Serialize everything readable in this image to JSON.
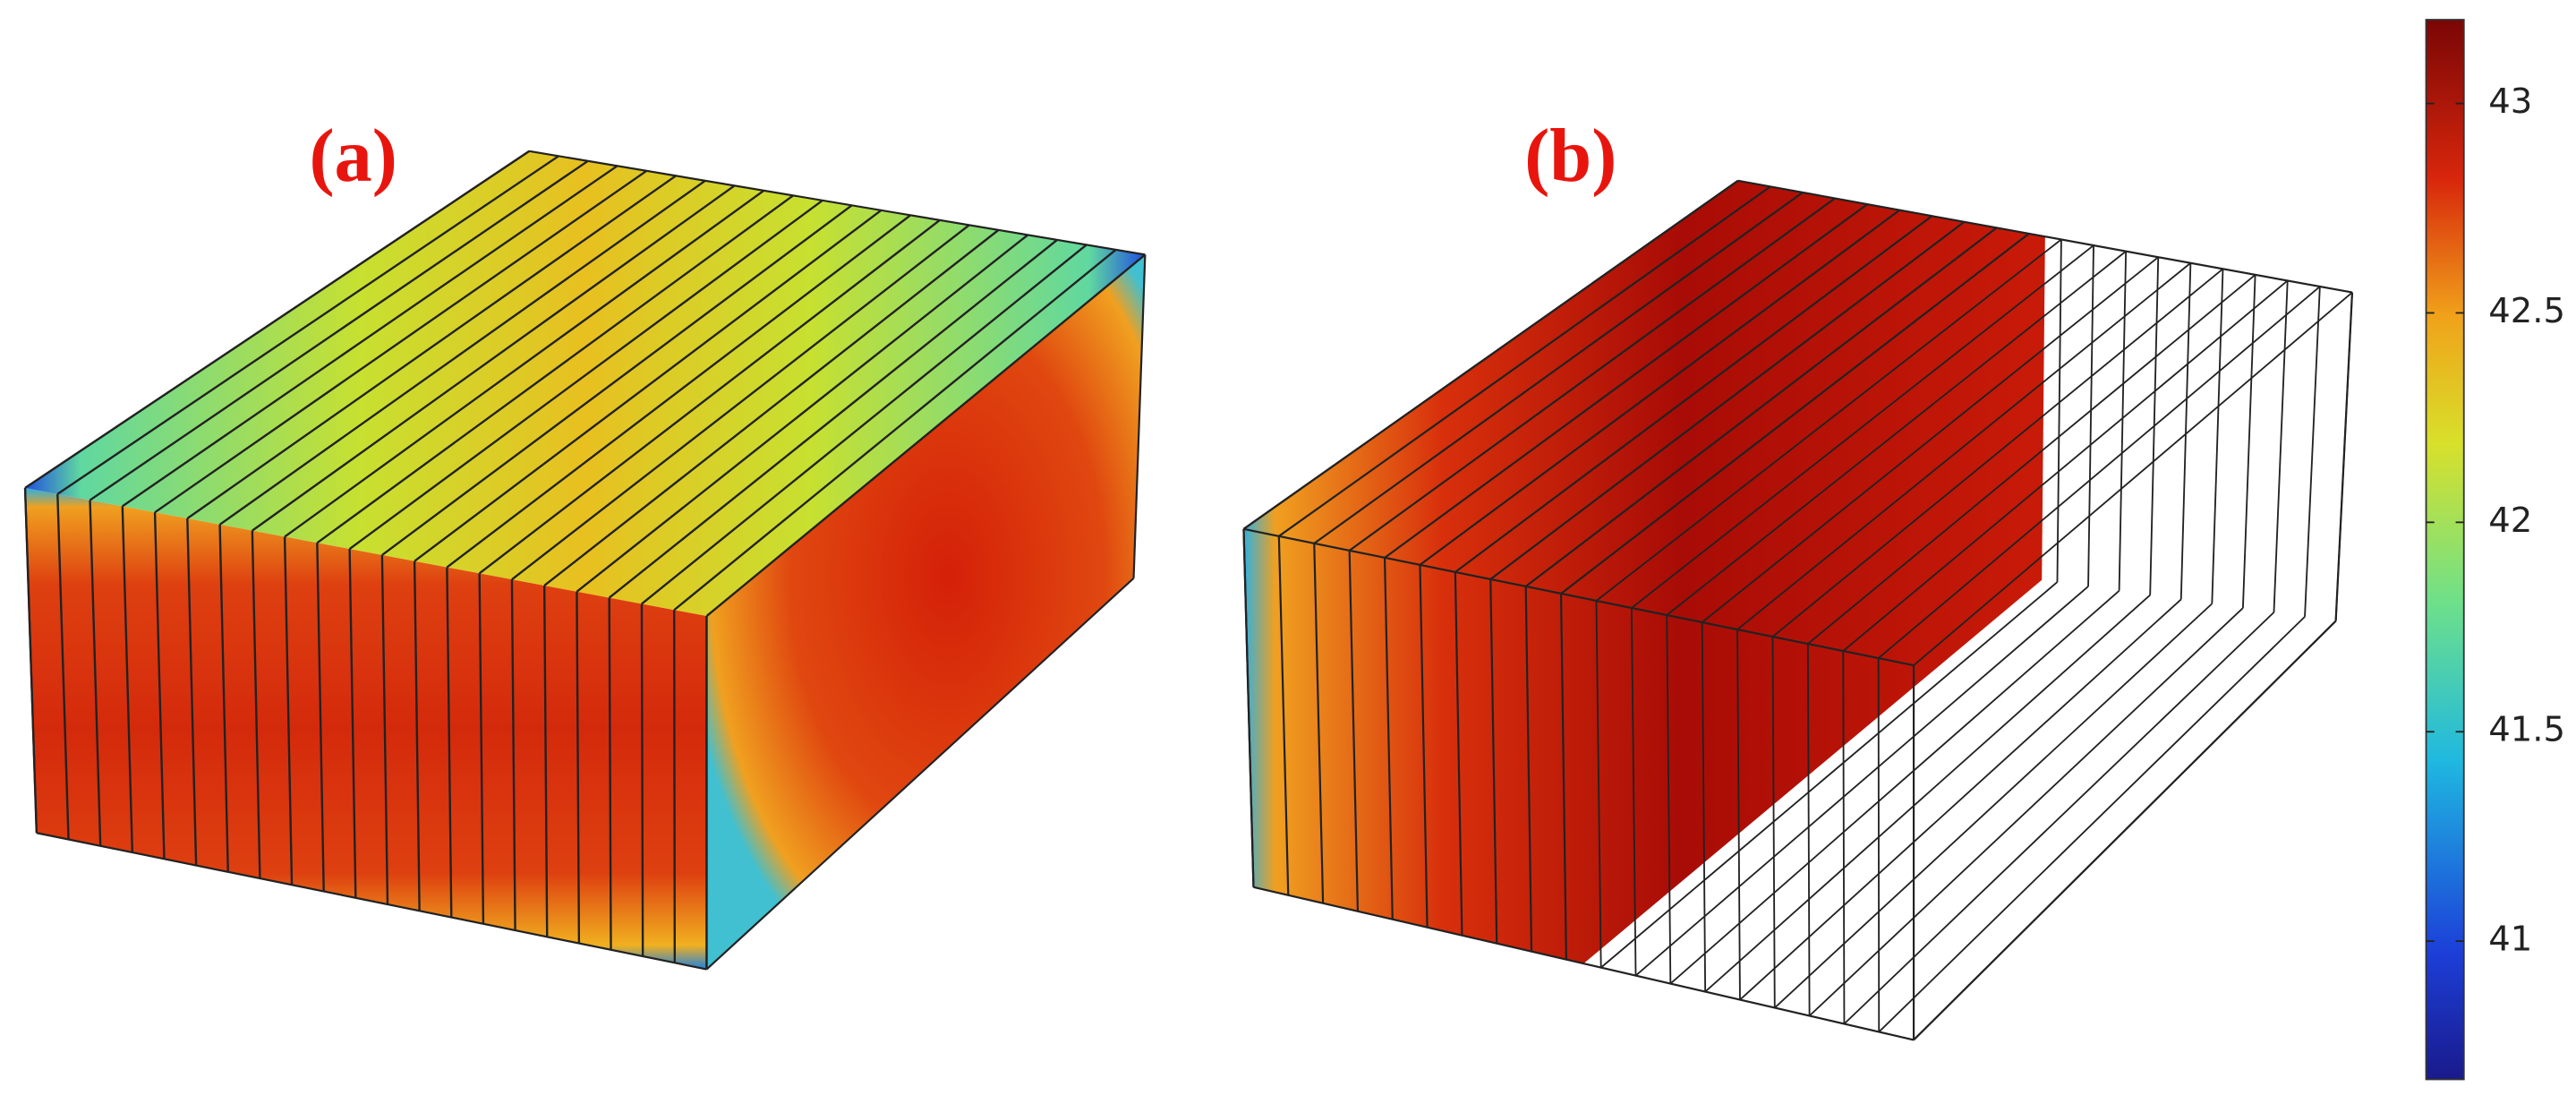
{
  "panels": [
    {
      "label": "(a)"
    },
    {
      "label": "(b)"
    }
  ],
  "colorbar": {
    "lim": [
      40.67,
      43.2
    ],
    "ticks": [
      41,
      41.5,
      42,
      42.5,
      43
    ]
  }
}
